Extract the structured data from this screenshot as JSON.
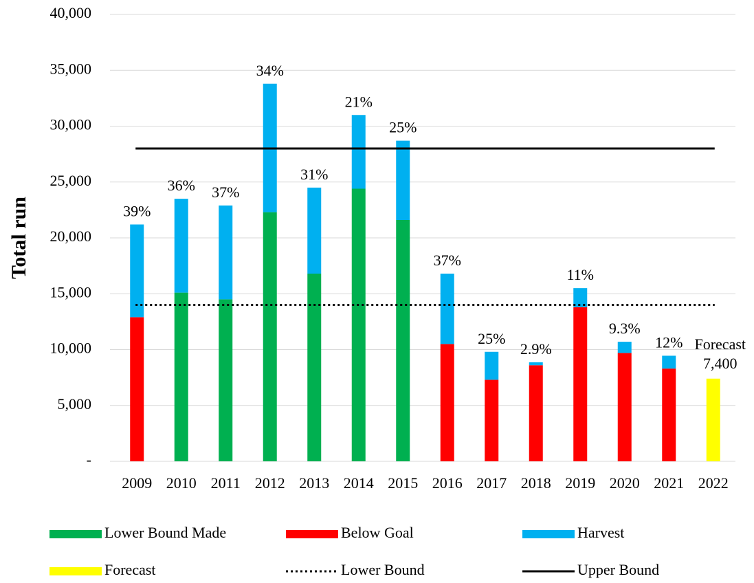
{
  "chart_data": {
    "type": "bar",
    "stacked": true,
    "y_label": "Total run",
    "categories": [
      "2009",
      "2010",
      "2011",
      "2012",
      "2013",
      "2014",
      "2015",
      "2016",
      "2017",
      "2018",
      "2019",
      "2020",
      "2021",
      "2022"
    ],
    "series": [
      {
        "name": "Lower Bound Made",
        "color": "#00b050",
        "values": [
          null,
          15100,
          14500,
          22300,
          16800,
          24400,
          21600,
          null,
          null,
          null,
          null,
          null,
          null,
          null
        ]
      },
      {
        "name": "Below Goal",
        "color": "#ff0000",
        "values": [
          12900,
          null,
          null,
          null,
          null,
          null,
          null,
          10500,
          7300,
          8600,
          13800,
          9700,
          8300,
          null
        ]
      },
      {
        "name": "Harvest",
        "color": "#00b0f0",
        "values": [
          8300,
          8400,
          8400,
          11500,
          7700,
          6600,
          7100,
          6300,
          2500,
          260,
          1700,
          1000,
          1150,
          null
        ]
      },
      {
        "name": "Forecast",
        "color": "#ffff00",
        "values": [
          null,
          null,
          null,
          null,
          null,
          null,
          null,
          null,
          null,
          null,
          null,
          null,
          null,
          7400
        ],
        "value_labels": [
          null,
          null,
          null,
          null,
          null,
          null,
          null,
          null,
          null,
          null,
          null,
          null,
          null,
          "7,400"
        ]
      }
    ],
    "harvest_rate_labels": [
      "39%",
      "36%",
      "37%",
      "34%",
      "31%",
      "21%",
      "25%",
      "37%",
      "25%",
      "2.9%",
      "11%",
      "9.3%",
      "12%",
      null
    ],
    "forecast_annotation": "Forecast",
    "lines": [
      {
        "name": "Lower Bound",
        "color": "#000000",
        "style": "dotted",
        "value": 14000
      },
      {
        "name": "Upper Bound",
        "color": "#000000",
        "style": "solid",
        "value": 28000
      }
    ],
    "ylim": [
      0,
      40000
    ],
    "yticks": [
      {
        "value": 0,
        "label": "-"
      },
      {
        "value": 5000,
        "label": "5,000"
      },
      {
        "value": 10000,
        "label": "10,000"
      },
      {
        "value": 15000,
        "label": "15,000"
      },
      {
        "value": 20000,
        "label": "20,000"
      },
      {
        "value": 25000,
        "label": "25,000"
      },
      {
        "value": 30000,
        "label": "30,000"
      },
      {
        "value": 35000,
        "label": "35,000"
      },
      {
        "value": 40000,
        "label": "40,000"
      }
    ],
    "grid": true,
    "legend": "bottom"
  }
}
